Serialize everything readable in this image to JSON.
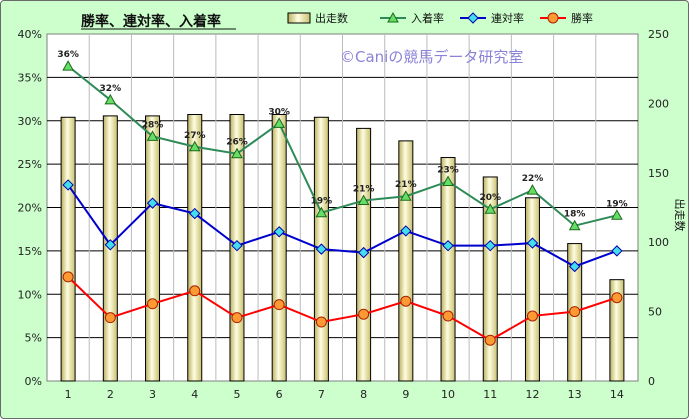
{
  "chart_data": {
    "type": "bar+line",
    "title": "勝率、連対率、入着率",
    "watermark": "©Caniの競馬データ研究室",
    "categories": [
      "1",
      "2",
      "3",
      "4",
      "5",
      "6",
      "7",
      "8",
      "9",
      "10",
      "11",
      "12",
      "13",
      "14"
    ],
    "bar_series": {
      "name": "出走数",
      "axis": "right",
      "values": [
        190,
        191,
        191,
        192,
        192,
        192,
        190,
        182,
        173,
        161,
        147,
        132,
        99,
        73
      ],
      "color": "#eeeeaa"
    },
    "line_series": [
      {
        "name": "入着率",
        "color": "#2e8b57",
        "marker": "triangle",
        "values": [
          36.3,
          32.4,
          28.2,
          27.0,
          26.2,
          29.7,
          19.4,
          20.8,
          21.3,
          23.0,
          19.8,
          22.0,
          17.9,
          19.1
        ],
        "labels": [
          "36%",
          "32%",
          "28%",
          "27%",
          "26%",
          "30%",
          "19%",
          "21%",
          "21%",
          "23%",
          "20%",
          "22%",
          "18%",
          "19%"
        ]
      },
      {
        "name": "連対率",
        "color": "#0000cc",
        "marker": "diamond",
        "values": [
          22.6,
          15.7,
          20.5,
          19.3,
          15.6,
          17.2,
          15.2,
          14.8,
          17.3,
          15.6,
          15.6,
          15.9,
          13.2,
          15.0
        ]
      },
      {
        "name": "勝率",
        "color": "#ff0000",
        "marker": "circle",
        "values": [
          12.0,
          7.3,
          8.9,
          10.4,
          7.3,
          8.8,
          6.8,
          7.7,
          9.2,
          7.5,
          4.7,
          7.5,
          8.0,
          9.6
        ]
      }
    ],
    "left_axis": {
      "min": 0,
      "max": 40,
      "step": 5,
      "suffix": "%"
    },
    "right_axis": {
      "min": 0,
      "max": 250,
      "step": 50,
      "label": "出走数"
    },
    "grid": true,
    "legend": "top-right"
  }
}
